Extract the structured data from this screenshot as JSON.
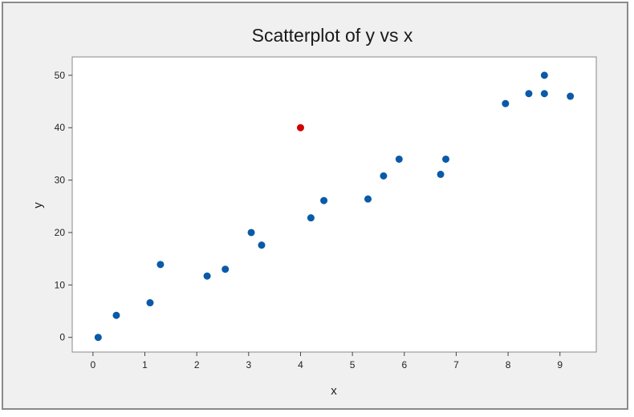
{
  "chart_data": {
    "type": "scatter",
    "title": "Scatterplot of y vs x",
    "xlabel": "x",
    "ylabel": "y",
    "xlim": [
      -0.4,
      9.7
    ],
    "ylim": [
      -2.8,
      53.5
    ],
    "xticks": [
      0,
      1,
      2,
      3,
      4,
      5,
      6,
      7,
      8,
      9
    ],
    "yticks": [
      0,
      10,
      20,
      30,
      40,
      50
    ],
    "grid": false,
    "colors": {
      "normal": "#0a5aa8",
      "highlight": "#d10000",
      "plot_bg": "#ffffff",
      "figure_bg": "#f0f0f0"
    },
    "points": [
      {
        "x": 0.1,
        "y": 0.0,
        "highlight": false
      },
      {
        "x": 0.45,
        "y": 4.2,
        "highlight": false
      },
      {
        "x": 1.1,
        "y": 6.6,
        "highlight": false
      },
      {
        "x": 1.3,
        "y": 13.9,
        "highlight": false
      },
      {
        "x": 2.2,
        "y": 11.7,
        "highlight": false
      },
      {
        "x": 2.55,
        "y": 13.0,
        "highlight": false
      },
      {
        "x": 3.05,
        "y": 20.0,
        "highlight": false
      },
      {
        "x": 3.25,
        "y": 17.6,
        "highlight": false
      },
      {
        "x": 4.0,
        "y": 40.0,
        "highlight": true
      },
      {
        "x": 4.2,
        "y": 22.8,
        "highlight": false
      },
      {
        "x": 4.45,
        "y": 26.1,
        "highlight": false
      },
      {
        "x": 5.3,
        "y": 26.4,
        "highlight": false
      },
      {
        "x": 5.6,
        "y": 30.8,
        "highlight": false
      },
      {
        "x": 5.9,
        "y": 34.0,
        "highlight": false
      },
      {
        "x": 6.7,
        "y": 31.1,
        "highlight": false
      },
      {
        "x": 6.8,
        "y": 34.0,
        "highlight": false
      },
      {
        "x": 7.95,
        "y": 44.6,
        "highlight": false
      },
      {
        "x": 8.4,
        "y": 46.5,
        "highlight": false
      },
      {
        "x": 8.7,
        "y": 46.5,
        "highlight": false
      },
      {
        "x": 8.7,
        "y": 50.0,
        "highlight": false
      },
      {
        "x": 9.2,
        "y": 46.0,
        "highlight": false
      }
    ]
  }
}
